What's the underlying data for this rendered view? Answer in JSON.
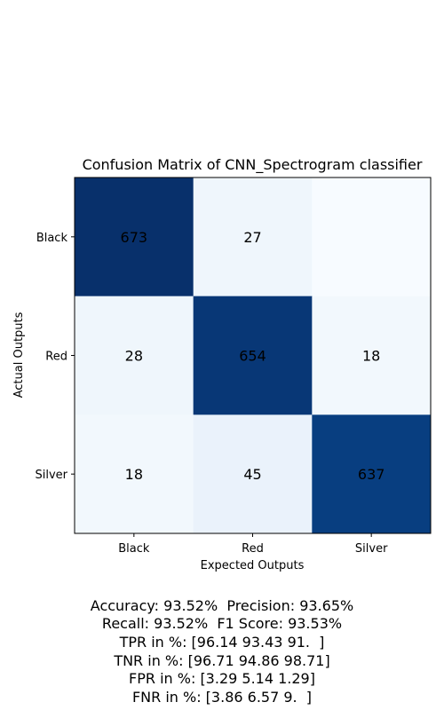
{
  "chart_data": {
    "type": "heatmap",
    "title": "Confusion Matrix of CNN_Spectrogram classifier",
    "xlabel": "Expected Outputs",
    "ylabel": "Actual Outputs",
    "x_categories": [
      "Black",
      "Red",
      "Silver"
    ],
    "y_categories": [
      "Black",
      "Red",
      "Silver"
    ],
    "values": [
      [
        673,
        27,
        0
      ],
      [
        28,
        654,
        18
      ],
      [
        18,
        45,
        637
      ]
    ],
    "value_labels": [
      [
        "673",
        "27",
        ""
      ],
      [
        "28",
        "654",
        "18"
      ],
      [
        "18",
        "45",
        "637"
      ]
    ],
    "colormap": "Blues",
    "color_low": "#f7fbff",
    "color_high": "#08306b",
    "vmin": 0,
    "vmax": 673
  },
  "metrics": {
    "line1": "Accuracy: 93.52%  Precision: 93.65%",
    "line2": "Recall: 93.52%  F1 Score: 93.53%",
    "line3": "TPR in %: [96.14 93.43 91.  ]",
    "line4": "TNR in %: [96.71 94.86 98.71]",
    "line5": "FPR in %: [3.29 5.14 1.29]",
    "line6": "FNR in %: [3.86 6.57 9.  ]"
  }
}
